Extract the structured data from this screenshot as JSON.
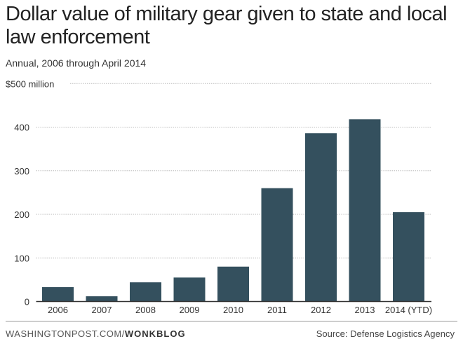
{
  "chart_data": {
    "type": "bar",
    "title": "Dollar value of military gear given to state and local law enforcement",
    "subtitle": "Annual, 2006 through April 2014",
    "ylabel": "",
    "xlabel": "",
    "unit_label": "$500 million",
    "ylim": [
      0,
      500
    ],
    "yticks": [
      0,
      100,
      200,
      300,
      400,
      500
    ],
    "ytick_labels": [
      "0",
      "100",
      "200",
      "300",
      "400",
      "$500 million"
    ],
    "grid": true,
    "categories": [
      "2006",
      "2007",
      "2008",
      "2009",
      "2010",
      "2011",
      "2012",
      "2013",
      "2014 (YTD)"
    ],
    "values": [
      33,
      12,
      44,
      55,
      80,
      260,
      386,
      418,
      205
    ],
    "colors": {
      "bar": "#34505e",
      "grid": "#bbbbbb"
    }
  },
  "footer": {
    "site": "WASHINGTONPOST.COM/",
    "blog": "WONKBLOG",
    "source": "Source: Defense Logistics Agency"
  }
}
